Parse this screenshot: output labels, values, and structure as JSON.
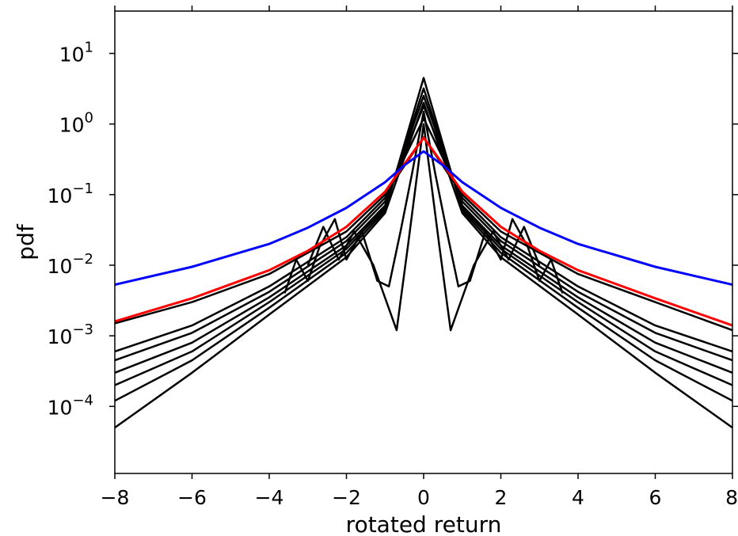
{
  "chart_data": {
    "type": "line",
    "title": "",
    "xlabel": "rotated return",
    "ylabel": "pdf",
    "xlim": [
      -8,
      8
    ],
    "ylim_log10": [
      -4.95,
      1.6
    ],
    "yscale": "log",
    "grid": false,
    "legend": "none",
    "x_ticks": [
      {
        "value": -8,
        "label": "−8"
      },
      {
        "value": -6,
        "label": "−6"
      },
      {
        "value": -4,
        "label": "−4"
      },
      {
        "value": -2,
        "label": "−2"
      },
      {
        "value": 0,
        "label": "0"
      },
      {
        "value": 2,
        "label": "2"
      },
      {
        "value": 4,
        "label": "4"
      },
      {
        "value": 6,
        "label": "6"
      },
      {
        "value": 8,
        "label": "8"
      }
    ],
    "y_ticks": [
      {
        "value": 10,
        "base": "10",
        "exp": "1"
      },
      {
        "value": 1,
        "base": "10",
        "exp": "0"
      },
      {
        "value": 0.1,
        "base": "10",
        "exp": "−1"
      },
      {
        "value": 0.01,
        "base": "10",
        "exp": "−2"
      },
      {
        "value": 0.001,
        "base": "10",
        "exp": "−3"
      },
      {
        "value": 0.0001,
        "base": "10",
        "exp": "−4"
      }
    ],
    "colors": {
      "empirical": "#000000",
      "red_curve": "#ff0000",
      "blue_curve": "#0000ff"
    },
    "series": [
      {
        "color": "#0000ff",
        "points": [
          [
            -8,
            0.0053
          ],
          [
            -6,
            0.0095
          ],
          [
            -4,
            0.02
          ],
          [
            -3,
            0.034
          ],
          [
            -2,
            0.065
          ],
          [
            -1,
            0.15
          ],
          [
            -0.5,
            0.26
          ],
          [
            0,
            0.41
          ],
          [
            0.5,
            0.26
          ],
          [
            1,
            0.15
          ],
          [
            2,
            0.065
          ],
          [
            3,
            0.034
          ],
          [
            4,
            0.02
          ],
          [
            6,
            0.0095
          ],
          [
            8,
            0.0053
          ]
        ]
      },
      {
        "color": "#ff0000",
        "points": [
          [
            -8,
            0.0016
          ],
          [
            -6,
            0.0034
          ],
          [
            -4,
            0.0085
          ],
          [
            -3,
            0.016
          ],
          [
            -2,
            0.035
          ],
          [
            -1,
            0.11
          ],
          [
            -0.5,
            0.27
          ],
          [
            0,
            0.64
          ],
          [
            0.5,
            0.27
          ],
          [
            1,
            0.11
          ],
          [
            2,
            0.035
          ],
          [
            3,
            0.016
          ],
          [
            4,
            0.0085
          ],
          [
            6,
            0.0034
          ],
          [
            8,
            0.0014
          ]
        ]
      },
      {
        "color": "#000000",
        "points": [
          [
            -8,
            0.0015
          ],
          [
            -6,
            0.003
          ],
          [
            -4,
            0.0075
          ],
          [
            -2,
            0.03
          ],
          [
            -1,
            0.1
          ],
          [
            0,
            0.65
          ],
          [
            1,
            0.1
          ],
          [
            2,
            0.03
          ],
          [
            4,
            0.0075
          ],
          [
            6,
            0.003
          ],
          [
            8,
            0.0012
          ]
        ]
      },
      {
        "color": "#000000",
        "points": [
          [
            -8,
            0.0006
          ],
          [
            -6,
            0.0014
          ],
          [
            -4,
            0.005
          ],
          [
            -2,
            0.025
          ],
          [
            -1,
            0.09
          ],
          [
            0,
            1.2
          ],
          [
            1,
            0.09
          ],
          [
            2,
            0.025
          ],
          [
            4,
            0.005
          ],
          [
            6,
            0.0014
          ],
          [
            8,
            0.0006
          ]
        ]
      },
      {
        "color": "#000000",
        "points": [
          [
            -8,
            0.00045
          ],
          [
            -6,
            0.0011
          ],
          [
            -4,
            0.0042
          ],
          [
            -2,
            0.022
          ],
          [
            -1,
            0.08
          ],
          [
            0,
            1.8
          ],
          [
            1,
            0.08
          ],
          [
            2,
            0.022
          ],
          [
            4,
            0.0042
          ],
          [
            6,
            0.0011
          ],
          [
            8,
            0.00045
          ]
        ]
      },
      {
        "color": "#000000",
        "points": [
          [
            -8,
            0.0003
          ],
          [
            -6,
            0.0008
          ],
          [
            -4,
            0.0035
          ],
          [
            -2,
            0.019
          ],
          [
            -1,
            0.07
          ],
          [
            0,
            2.5
          ],
          [
            1,
            0.07
          ],
          [
            2,
            0.019
          ],
          [
            4,
            0.0035
          ],
          [
            6,
            0.0008
          ],
          [
            8,
            0.0003
          ]
        ]
      },
      {
        "color": "#000000",
        "points": [
          [
            -8,
            0.0002
          ],
          [
            -6,
            0.0006
          ],
          [
            -4,
            0.003
          ],
          [
            -2,
            0.017
          ],
          [
            -1,
            0.065
          ],
          [
            0,
            3.2
          ],
          [
            1,
            0.065
          ],
          [
            2,
            0.017
          ],
          [
            4,
            0.003
          ],
          [
            6,
            0.0006
          ],
          [
            8,
            0.0002
          ]
        ]
      },
      {
        "color": "#000000",
        "points": [
          [
            -8,
            0.00012
          ],
          [
            -6,
            0.00045
          ],
          [
            -4,
            0.0025
          ],
          [
            -2,
            0.015
          ],
          [
            -1,
            0.06
          ],
          [
            0,
            4.5
          ],
          [
            1,
            0.06
          ],
          [
            2,
            0.015
          ],
          [
            4,
            0.0025
          ],
          [
            6,
            0.00045
          ],
          [
            8,
            0.00012
          ]
        ]
      },
      {
        "color": "#000000",
        "points": [
          [
            -8,
            5e-05
          ],
          [
            -6,
            0.0003
          ],
          [
            -4,
            0.002
          ],
          [
            -2,
            0.013
          ],
          [
            -1,
            0.055
          ],
          [
            0,
            2.0
          ],
          [
            1,
            0.055
          ],
          [
            2,
            0.013
          ],
          [
            4,
            0.002
          ],
          [
            6,
            0.0003
          ],
          [
            8,
            5e-05
          ]
        ]
      },
      {
        "color": "#000000",
        "points": [
          [
            -3.6,
            0.004
          ],
          [
            -3.3,
            0.012
          ],
          [
            -3,
            0.006
          ],
          [
            -2.7,
            0.018
          ],
          [
            -2.3,
            0.045
          ],
          [
            -2,
            0.012
          ],
          [
            -1.6,
            0.03
          ],
          [
            -1.2,
            0.006
          ],
          [
            -0.9,
            0.005
          ],
          [
            -0.6,
            0.03
          ],
          [
            -0.3,
            0.2
          ],
          [
            0,
            1.5
          ],
          [
            0.3,
            0.2
          ],
          [
            0.6,
            0.03
          ],
          [
            0.9,
            0.005
          ],
          [
            1.2,
            0.006
          ],
          [
            1.6,
            0.03
          ],
          [
            2,
            0.012
          ],
          [
            2.3,
            0.045
          ],
          [
            2.7,
            0.018
          ],
          [
            3,
            0.006
          ],
          [
            3.3,
            0.012
          ],
          [
            3.6,
            0.004
          ]
        ]
      },
      {
        "color": "#000000",
        "points": [
          [
            -3,
            0.01
          ],
          [
            -2.6,
            0.035
          ],
          [
            -2.2,
            0.012
          ],
          [
            -1.8,
            0.03
          ],
          [
            -1.3,
            0.01
          ],
          [
            -0.7,
            0.0012
          ],
          [
            -0.4,
            0.02
          ],
          [
            0,
            1.0
          ],
          [
            0.4,
            0.02
          ],
          [
            0.7,
            0.0012
          ],
          [
            1.3,
            0.01
          ],
          [
            1.8,
            0.03
          ],
          [
            2.2,
            0.012
          ],
          [
            2.6,
            0.035
          ],
          [
            3,
            0.01
          ]
        ]
      }
    ]
  }
}
